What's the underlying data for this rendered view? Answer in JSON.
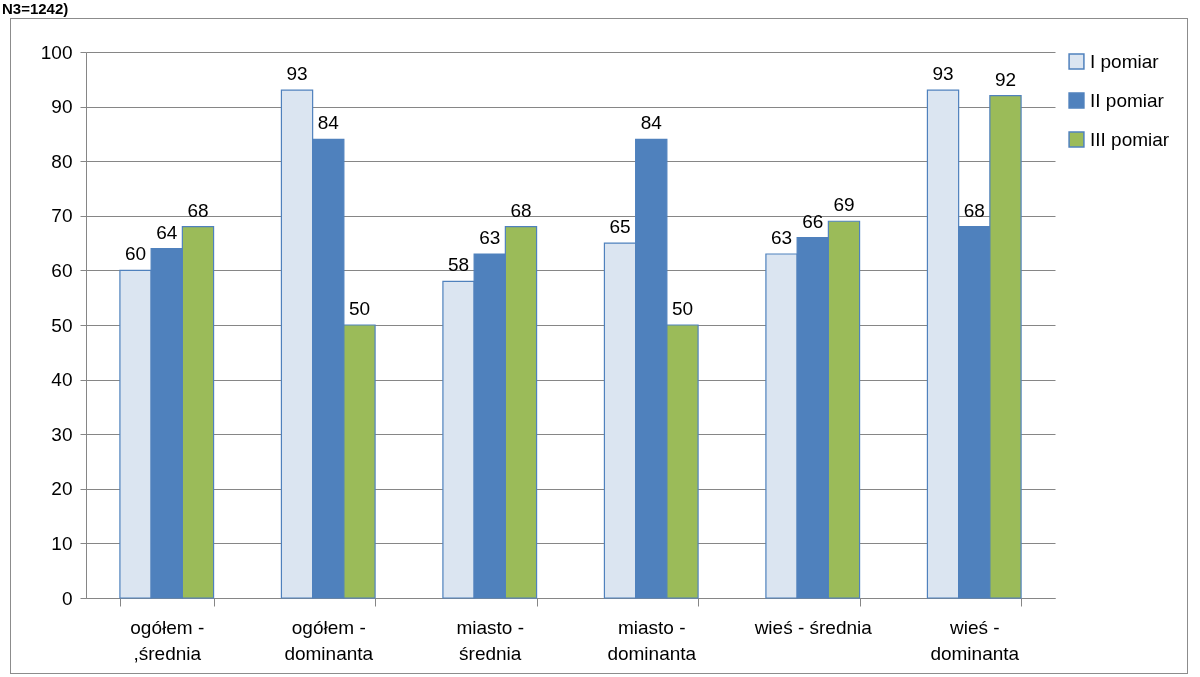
{
  "chart_data": {
    "type": "bar",
    "title": "N3=1242)",
    "categories": [
      "ogółem - ,średnia",
      "ogółem - dominanta",
      "miasto - średnia",
      "miasto - dominanta",
      "wieś - średnia",
      "wieś - dominanta"
    ],
    "series": [
      {
        "name": "I pomiar",
        "color": "#dbe5f1",
        "values": [
          60,
          93,
          58,
          65,
          63,
          93
        ]
      },
      {
        "name": "II pomiar",
        "color": "#4f81bd",
        "values": [
          64,
          84,
          63,
          84,
          66,
          68
        ]
      },
      {
        "name": "III pomiar",
        "color": "#9bbb59",
        "values": [
          68,
          50,
          68,
          50,
          69,
          92
        ]
      }
    ],
    "ylim": [
      0,
      100
    ],
    "yticks": [
      0,
      10,
      20,
      30,
      40,
      50,
      60,
      70,
      80,
      90,
      100
    ],
    "grid": "y",
    "legend": "right",
    "data_labels": true
  }
}
